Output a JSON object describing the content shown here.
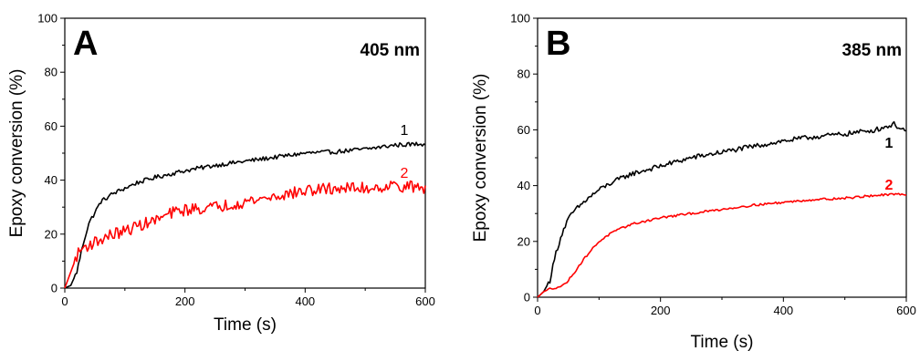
{
  "chart_data": [
    {
      "type": "line",
      "panel": "A",
      "annotation": "405 nm",
      "xlabel": "Time (s)",
      "ylabel": "Epoxy conversion (%)",
      "xlim": [
        0,
        600
      ],
      "ylim": [
        0,
        100
      ],
      "xticks": [
        0,
        200,
        400,
        600
      ],
      "yticks": [
        0,
        20,
        40,
        60,
        80,
        100
      ],
      "grid": false,
      "series": [
        {
          "name": "1",
          "color": "#000000",
          "noise": 0.8,
          "x": [
            0,
            10,
            20,
            30,
            40,
            50,
            60,
            80,
            100,
            120,
            150,
            200,
            250,
            300,
            350,
            400,
            450,
            500,
            550,
            600
          ],
          "y": [
            0,
            1,
            6,
            16,
            24,
            28,
            32,
            35,
            37,
            39,
            41,
            43.5,
            45.5,
            47,
            48.5,
            50,
            50.5,
            51.5,
            53,
            53.5
          ]
        },
        {
          "name": "2",
          "color": "#ff0000",
          "noise": 2.2,
          "x": [
            0,
            10,
            20,
            30,
            40,
            60,
            80,
            100,
            120,
            150,
            180,
            200,
            250,
            300,
            350,
            400,
            450,
            500,
            550,
            600
          ],
          "y": [
            0,
            6,
            12,
            15,
            16,
            18,
            20,
            21,
            23,
            25,
            28,
            29,
            30,
            32,
            34,
            36,
            37,
            37,
            38,
            37
          ]
        }
      ]
    },
    {
      "type": "line",
      "panel": "B",
      "annotation": "385 nm",
      "xlabel": "Time (s)",
      "ylabel": "Epoxy conversion (%)",
      "xlim": [
        0,
        600
      ],
      "ylim": [
        0,
        100
      ],
      "xticks": [
        0,
        200,
        400,
        600
      ],
      "yticks": [
        0,
        20,
        40,
        60,
        80,
        100
      ],
      "grid": false,
      "series": [
        {
          "name": "1",
          "color": "#000000",
          "noise": 0.9,
          "x": [
            0,
            10,
            20,
            30,
            40,
            50,
            60,
            80,
            100,
            120,
            150,
            200,
            250,
            300,
            350,
            400,
            450,
            500,
            550,
            580,
            600
          ],
          "y": [
            0,
            2,
            6,
            16,
            23,
            28,
            31,
            35,
            38.5,
            41,
            44,
            47,
            50,
            52,
            54,
            56,
            57.5,
            58.5,
            60,
            62,
            59.5
          ]
        },
        {
          "name": "2",
          "color": "#ff0000",
          "noise": 0.4,
          "x": [
            0,
            10,
            20,
            30,
            40,
            50,
            60,
            70,
            80,
            100,
            120,
            150,
            200,
            250,
            300,
            350,
            400,
            450,
            500,
            550,
            600
          ],
          "y": [
            0,
            2,
            3,
            3.5,
            4,
            6,
            9,
            12,
            15,
            20,
            23,
            26,
            28.5,
            30,
            31.5,
            33,
            34,
            35,
            35.5,
            36.5,
            37
          ]
        }
      ]
    }
  ]
}
